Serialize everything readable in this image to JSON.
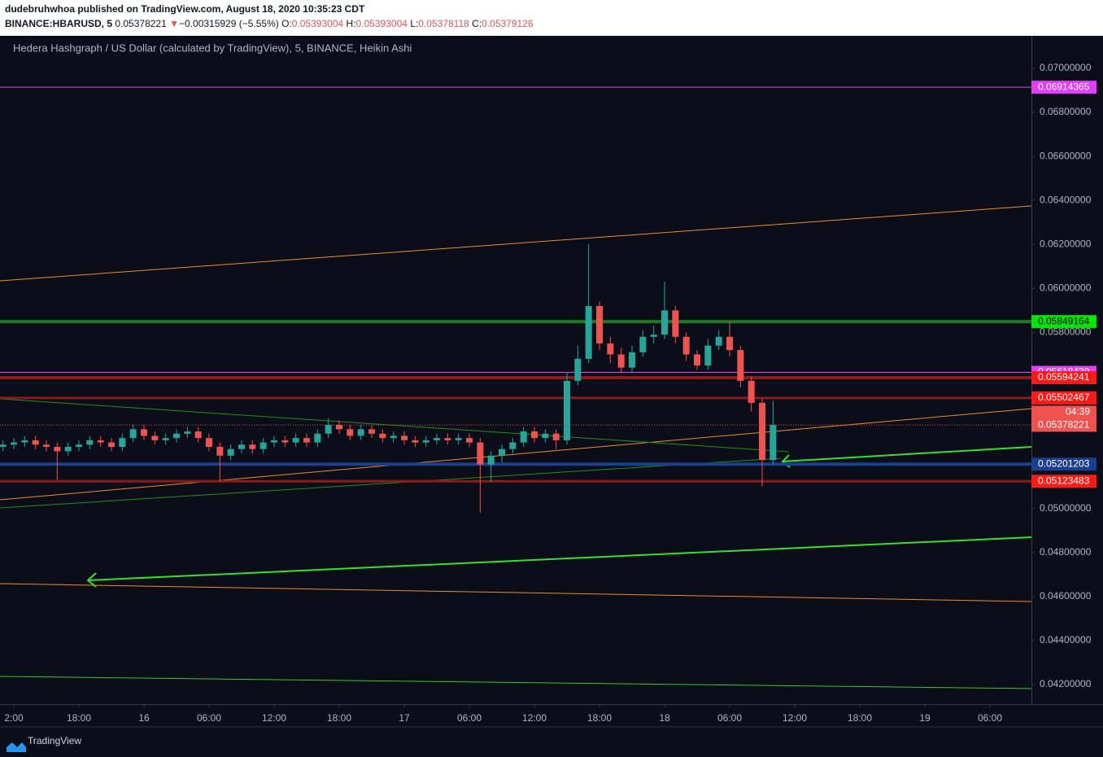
{
  "header": {
    "byline": "dudebruhwhoa published on TradingView.com, August 18, 2020 10:35:23 CDT",
    "symbol": "BINANCE:HBARUSD, 5",
    "last": "0.05378221",
    "arrow": "▼",
    "change": "−0.00315929 (−5.55%)",
    "ohlc": [
      {
        "label": "O:",
        "value": "0.05393004"
      },
      {
        "label": "H:",
        "value": "0.05393004"
      },
      {
        "label": "L:",
        "value": "0.05378118"
      },
      {
        "label": "C:",
        "value": "0.05379126"
      }
    ]
  },
  "footer": {
    "brand": "TradingView"
  },
  "chart_data": {
    "type": "candlestick",
    "title": "Hedera Hashgraph / US Dollar (calculated by TradingView), 5, BINANCE, Heikin Ashi",
    "up_color": "#26a69a",
    "down_color": "#ef5350",
    "x": [
      -1,
      0,
      1,
      2,
      3,
      4,
      5,
      6,
      7,
      8,
      9,
      10,
      11,
      12,
      13,
      14,
      15,
      16,
      17,
      18,
      19,
      20,
      21,
      22,
      23,
      24,
      25,
      26,
      27,
      28,
      29,
      30,
      31,
      32,
      33,
      34,
      35,
      36,
      37,
      38,
      39,
      40,
      41,
      42,
      43,
      44,
      45,
      46,
      47,
      48,
      49,
      50,
      51,
      52,
      53,
      54,
      55,
      56,
      57,
      58,
      59,
      60,
      61,
      62,
      63,
      64,
      65,
      66,
      67,
      68,
      69,
      70
    ],
    "open": [
      0.0528,
      0.0529,
      0.053,
      0.0531,
      0.0529,
      0.0528,
      0.0526,
      0.0528,
      0.0529,
      0.0531,
      0.053,
      0.0528,
      0.0532,
      0.0536,
      0.0533,
      0.0531,
      0.0532,
      0.0534,
      0.0535,
      0.0532,
      0.0528,
      0.0524,
      0.0527,
      0.0529,
      0.0527,
      0.053,
      0.0531,
      0.053,
      0.0532,
      0.053,
      0.0534,
      0.0538,
      0.0536,
      0.0533,
      0.0536,
      0.0534,
      0.0532,
      0.0533,
      0.0531,
      0.053,
      0.0531,
      0.0532,
      0.0531,
      0.0532,
      0.053,
      0.052,
      0.0524,
      0.0527,
      0.053,
      0.0535,
      0.0532,
      0.0534,
      0.0531,
      0.0558,
      0.0568,
      0.0592,
      0.0575,
      0.057,
      0.0564,
      0.0571,
      0.0578,
      0.0579,
      0.059,
      0.0578,
      0.057,
      0.0565,
      0.0574,
      0.0578,
      0.0572,
      0.0558,
      0.0548,
      0.0522
    ],
    "high": [
      0.0531,
      0.0532,
      0.0533,
      0.0533,
      0.0531,
      0.053,
      0.053,
      0.0531,
      0.0533,
      0.0533,
      0.0532,
      0.0534,
      0.0538,
      0.0538,
      0.0535,
      0.0534,
      0.0536,
      0.0537,
      0.0537,
      0.0534,
      0.053,
      0.0529,
      0.0531,
      0.0531,
      0.0532,
      0.0533,
      0.0533,
      0.0534,
      0.0534,
      0.0536,
      0.0541,
      0.054,
      0.0538,
      0.0538,
      0.0538,
      0.0536,
      0.0535,
      0.0535,
      0.0533,
      0.0533,
      0.0534,
      0.0534,
      0.0534,
      0.0534,
      0.0532,
      0.0526,
      0.0529,
      0.0532,
      0.0537,
      0.0537,
      0.0536,
      0.0536,
      0.0562,
      0.0574,
      0.062,
      0.0594,
      0.0578,
      0.0573,
      0.0574,
      0.0581,
      0.0583,
      0.0603,
      0.0592,
      0.058,
      0.0572,
      0.0577,
      0.0581,
      0.0585,
      0.0574,
      0.056,
      0.055,
      0.0549
    ],
    "low": [
      0.0526,
      0.0527,
      0.0528,
      0.0527,
      0.0526,
      0.0513,
      0.0524,
      0.0526,
      0.0527,
      0.0528,
      0.0526,
      0.0526,
      0.053,
      0.0531,
      0.0529,
      0.0529,
      0.053,
      0.0532,
      0.053,
      0.0526,
      0.0512,
      0.0522,
      0.0525,
      0.0525,
      0.0525,
      0.0528,
      0.0528,
      0.0528,
      0.0528,
      0.0528,
      0.0532,
      0.0534,
      0.0531,
      0.0531,
      0.0532,
      0.053,
      0.053,
      0.0529,
      0.0528,
      0.0528,
      0.0529,
      0.0529,
      0.0529,
      0.0528,
      0.0498,
      0.0512,
      0.0521,
      0.0525,
      0.0528,
      0.053,
      0.053,
      0.0527,
      0.0529,
      0.0556,
      0.0566,
      0.0572,
      0.0566,
      0.0562,
      0.0562,
      0.0569,
      0.0575,
      0.0577,
      0.0575,
      0.0567,
      0.0563,
      0.0563,
      0.0572,
      0.0569,
      0.0555,
      0.0544,
      0.051,
      0.052
    ],
    "close": [
      0.0529,
      0.053,
      0.0531,
      0.0529,
      0.0528,
      0.0526,
      0.0528,
      0.0529,
      0.0531,
      0.053,
      0.0528,
      0.0532,
      0.0536,
      0.0533,
      0.0531,
      0.0532,
      0.0534,
      0.0535,
      0.0532,
      0.0528,
      0.0524,
      0.0527,
      0.0529,
      0.0527,
      0.053,
      0.0531,
      0.053,
      0.0532,
      0.053,
      0.0534,
      0.0538,
      0.0536,
      0.0533,
      0.0536,
      0.0534,
      0.0532,
      0.0533,
      0.0531,
      0.053,
      0.0531,
      0.0532,
      0.0531,
      0.0532,
      0.053,
      0.052,
      0.0524,
      0.0527,
      0.053,
      0.0535,
      0.0532,
      0.0534,
      0.0531,
      0.0558,
      0.0568,
      0.0592,
      0.0575,
      0.057,
      0.0564,
      0.0571,
      0.0578,
      0.0579,
      0.059,
      0.0578,
      0.057,
      0.0565,
      0.0574,
      0.0578,
      0.0572,
      0.0558,
      0.0548,
      0.0522,
      0.0538
    ],
    "xlim": [
      -1.275,
      93.825
    ],
    "xticks": [
      {
        "value": 0,
        "label": "2:00"
      },
      {
        "value": 6,
        "label": "18:00"
      },
      {
        "value": 12,
        "label": "16"
      },
      {
        "value": 18,
        "label": "06:00"
      },
      {
        "value": 24,
        "label": "12:00"
      },
      {
        "value": 30,
        "label": "18:00"
      },
      {
        "value": 36,
        "label": "17"
      },
      {
        "value": 42,
        "label": "06:00"
      },
      {
        "value": 48,
        "label": "12:00"
      },
      {
        "value": 54,
        "label": "18:00"
      },
      {
        "value": 60,
        "label": "18"
      },
      {
        "value": 66,
        "label": "06:00"
      },
      {
        "value": 72,
        "label": "12:00"
      },
      {
        "value": 78,
        "label": "18:00"
      },
      {
        "value": 84,
        "label": "19"
      },
      {
        "value": 90,
        "label": "06:00"
      }
    ],
    "ylim": [
      0.04111,
      0.07148
    ],
    "yticks": [
      {
        "value": 0.07,
        "label": "0.07000000"
      },
      {
        "value": 0.068,
        "label": "0.06800000"
      },
      {
        "value": 0.066,
        "label": "0.06600000"
      },
      {
        "value": 0.064,
        "label": "0.06400000"
      },
      {
        "value": 0.062,
        "label": "0.06200000"
      },
      {
        "value": 0.06,
        "label": "0.06000000"
      },
      {
        "value": 0.058,
        "label": "0.05800000"
      },
      {
        "value": 0.05,
        "label": "0.05000000"
      },
      {
        "value": 0.048,
        "label": "0.04800000"
      },
      {
        "value": 0.046,
        "label": "0.04600000"
      },
      {
        "value": 0.044,
        "label": "0.04400000"
      },
      {
        "value": 0.042,
        "label": "0.04200000"
      }
    ],
    "price_lines": [
      {
        "value": 0.06914365,
        "color": "#e040fb",
        "width": 1
      },
      {
        "value": 0.05849164,
        "color": "#1b7a1b",
        "width": 4
      },
      {
        "value": 0.05618439,
        "color": "#e040fb",
        "width": 1
      },
      {
        "value": 0.05594241,
        "color": "#8b1a1a",
        "width": 4
      },
      {
        "value": 0.05502467,
        "color": "#8b1a1a",
        "width": 3
      },
      {
        "value": 0.05201203,
        "color": "#1a3f8f",
        "width": 4
      },
      {
        "value": 0.05123483,
        "color": "#8b1a1a",
        "width": 3
      }
    ],
    "last_close": {
      "value": 0.05379126,
      "color": "#ef5350"
    },
    "last_price": {
      "value": 0.05378221,
      "countdown": "04:39",
      "color": "#ef5350"
    }
  }
}
